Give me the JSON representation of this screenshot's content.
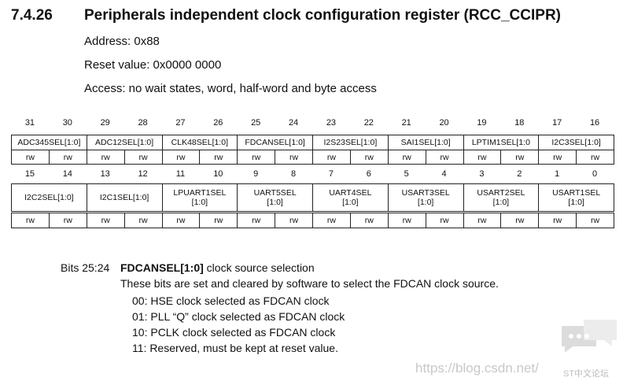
{
  "header": {
    "section": "7.4.26",
    "title": "Peripherals independent clock configuration register (RCC_CCIPR)"
  },
  "address": "Address: 0x88",
  "reset_value": "Reset value: 0x0000 0000",
  "access": "Access: no wait states, word, half-word and byte access",
  "register": {
    "upper": {
      "bits": [
        31,
        30,
        29,
        28,
        27,
        26,
        25,
        24,
        23,
        22,
        21,
        20,
        19,
        18,
        17,
        16
      ],
      "fields": [
        [
          "ADC345SEL[1:0]"
        ],
        [
          "ADC12SEL[1:0]"
        ],
        [
          "CLK48SEL[1:0]"
        ],
        [
          "FDCANSEL[1:0]"
        ],
        [
          "I2S23SEL[1:0]"
        ],
        [
          "SAI1SEL[1:0]"
        ],
        [
          "LPTIM1SEL[1:0"
        ],
        [
          "I2C3SEL[1:0]"
        ]
      ],
      "access": [
        "rw",
        "rw",
        "rw",
        "rw",
        "rw",
        "rw",
        "rw",
        "rw",
        "rw",
        "rw",
        "rw",
        "rw",
        "rw",
        "rw",
        "rw",
        "rw"
      ]
    },
    "lower": {
      "bits": [
        15,
        14,
        13,
        12,
        11,
        10,
        9,
        8,
        7,
        6,
        5,
        4,
        3,
        2,
        1,
        0
      ],
      "fields": [
        [
          "I2C2SEL[1:0]"
        ],
        [
          "I2C1SEL[1:0]"
        ],
        [
          "LPUART1SEL",
          "[1:0]"
        ],
        [
          "UART5SEL",
          "[1:0]"
        ],
        [
          "UART4SEL",
          "[1:0]"
        ],
        [
          "USART3SEL",
          "[1:0]"
        ],
        [
          "USART2SEL",
          "[1:0]"
        ],
        [
          "USART1SEL",
          "[1:0]"
        ]
      ],
      "access": [
        "rw",
        "rw",
        "rw",
        "rw",
        "rw",
        "rw",
        "rw",
        "rw",
        "rw",
        "rw",
        "rw",
        "rw",
        "rw",
        "rw",
        "rw",
        "rw"
      ]
    }
  },
  "description": {
    "bits": "Bits 25:24",
    "field": "FDCANSEL[1:0]",
    "summary": " clock source selection",
    "text": "These bits are set and cleared by software to select the FDCAN clock source.",
    "options": [
      "00: HSE clock selected as FDCAN clock",
      "01: PLL “Q” clock selected as FDCAN clock",
      "10: PCLK clock selected as FDCAN clock",
      "11: Reserved, must be kept at reset value."
    ]
  },
  "watermark": {
    "url": "https://blog.csdn.net/",
    "logo": "ST中文论坛"
  }
}
